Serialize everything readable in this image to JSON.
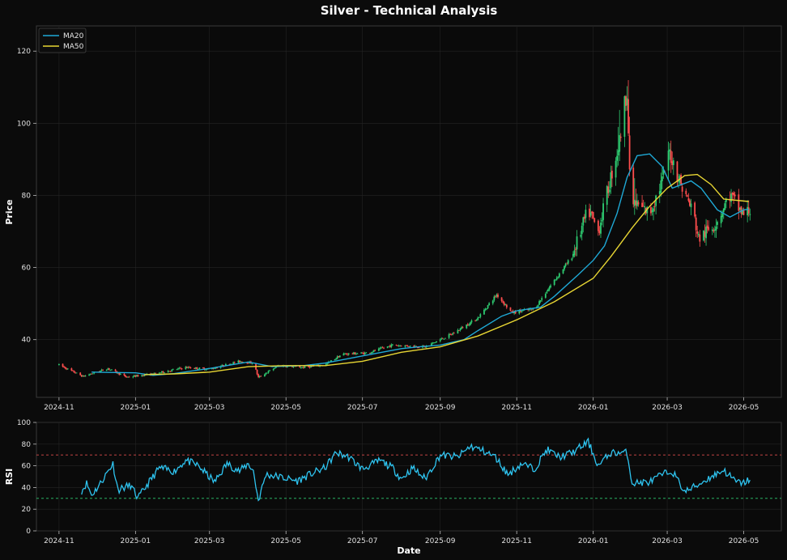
{
  "chart_data": [
    {
      "type": "candlestick",
      "title": "Silver - Technical Analysis",
      "ylabel": "Price",
      "ylim": [
        24,
        127
      ],
      "yticks": [
        40,
        60,
        80,
        100,
        120
      ],
      "xlim": [
        "2024-10-14",
        "2026-05-31"
      ],
      "xticks": [
        "2024-11",
        "2025-01",
        "2025-03",
        "2025-05",
        "2025-07",
        "2025-09",
        "2025-11",
        "2026-01",
        "2026-03",
        "2026-05"
      ],
      "grid": true,
      "legend": "top-left",
      "colors": {
        "up": "#2ecc71",
        "down": "#ff4d4d",
        "ma20": "#1fa9d6",
        "ma50": "#e8d633",
        "grid": "#242424",
        "frame": "#3a3a3a"
      },
      "series": [
        {
          "name": "MA20",
          "color": "#1fa9d6",
          "points": [
            [
              "2024-11-27",
              31.0
            ],
            [
              "2025-01-01",
              30.8
            ],
            [
              "2025-01-15",
              30.1
            ],
            [
              "2025-02-01",
              30.6
            ],
            [
              "2025-03-01",
              32.0
            ],
            [
              "2025-04-01",
              33.8
            ],
            [
              "2025-04-20",
              32.5
            ],
            [
              "2025-05-15",
              32.8
            ],
            [
              "2025-06-01",
              33.5
            ],
            [
              "2025-07-01",
              35.5
            ],
            [
              "2025-08-01",
              37.5
            ],
            [
              "2025-08-15",
              38.0
            ],
            [
              "2025-09-01",
              38.5
            ],
            [
              "2025-09-20",
              40.0
            ],
            [
              "2025-10-01",
              42.5
            ],
            [
              "2025-10-20",
              46.5
            ],
            [
              "2025-11-01",
              48.0
            ],
            [
              "2025-11-20",
              49.0
            ],
            [
              "2025-12-01",
              52.0
            ],
            [
              "2025-12-20",
              58.0
            ],
            [
              "2026-01-01",
              62.0
            ],
            [
              "2026-01-10",
              66.0
            ],
            [
              "2026-01-20",
              75.0
            ],
            [
              "2026-01-28",
              85.0
            ],
            [
              "2026-02-05",
              91.0
            ],
            [
              "2026-02-15",
              91.5
            ],
            [
              "2026-02-25",
              88.0
            ],
            [
              "2026-03-05",
              82.0
            ],
            [
              "2026-03-20",
              84.0
            ],
            [
              "2026-03-28",
              82.0
            ],
            [
              "2026-04-10",
              76.0
            ],
            [
              "2026-04-20",
              74.0
            ],
            [
              "2026-05-01",
              76.0
            ],
            [
              "2026-05-05",
              76.2
            ]
          ]
        },
        {
          "name": "MA50",
          "color": "#e8d633",
          "points": [
            [
              "2025-01-08",
              30.3
            ],
            [
              "2025-02-01",
              30.5
            ],
            [
              "2025-03-01",
              31.0
            ],
            [
              "2025-04-01",
              32.5
            ],
            [
              "2025-05-01",
              32.8
            ],
            [
              "2025-06-01",
              32.8
            ],
            [
              "2025-07-01",
              34.0
            ],
            [
              "2025-08-01",
              36.5
            ],
            [
              "2025-09-01",
              38.0
            ],
            [
              "2025-10-01",
              41.0
            ],
            [
              "2025-11-01",
              45.5
            ],
            [
              "2025-12-01",
              50.5
            ],
            [
              "2026-01-01",
              57.0
            ],
            [
              "2026-01-15",
              63.0
            ],
            [
              "2026-02-01",
              71.0
            ],
            [
              "2026-02-15",
              77.0
            ],
            [
              "2026-03-01",
              82.0
            ],
            [
              "2026-03-15",
              85.5
            ],
            [
              "2026-03-25",
              85.8
            ],
            [
              "2026-04-05",
              83.0
            ],
            [
              "2026-04-15",
              79.0
            ],
            [
              "2026-05-05",
              78.3
            ]
          ]
        }
      ],
      "candle_anchors": [
        [
          "2024-11-01",
          33.0
        ],
        [
          "2024-11-20",
          29.8
        ],
        [
          "2024-12-10",
          32.0
        ],
        [
          "2024-12-25",
          29.6
        ],
        [
          "2025-01-15",
          30.5
        ],
        [
          "2025-02-10",
          32.3
        ],
        [
          "2025-03-01",
          31.8
        ],
        [
          "2025-03-25",
          34.0
        ],
        [
          "2025-04-05",
          33.5
        ],
        [
          "2025-04-09",
          29.5
        ],
        [
          "2025-04-25",
          32.8
        ],
        [
          "2025-05-15",
          32.3
        ],
        [
          "2025-06-01",
          33.0
        ],
        [
          "2025-06-15",
          36.0
        ],
        [
          "2025-07-05",
          36.3
        ],
        [
          "2025-07-25",
          38.5
        ],
        [
          "2025-08-20",
          38.0
        ],
        [
          "2025-09-10",
          41.5
        ],
        [
          "2025-10-01",
          46.0
        ],
        [
          "2025-10-16",
          52.5
        ],
        [
          "2025-10-28",
          47.5
        ],
        [
          "2025-11-15",
          48.5
        ],
        [
          "2025-11-28",
          55.0
        ],
        [
          "2025-12-15",
          63.0
        ],
        [
          "2025-12-28",
          76.0
        ],
        [
          "2026-01-05",
          70.0
        ],
        [
          "2026-01-15",
          85.0
        ],
        [
          "2026-01-22",
          95.0
        ],
        [
          "2026-01-28",
          110.0
        ],
        [
          "2026-01-30",
          85.0
        ],
        [
          "2026-02-02",
          78.0
        ],
        [
          "2026-02-15",
          75.0
        ],
        [
          "2026-02-25",
          84.0
        ],
        [
          "2026-03-03",
          92.0
        ],
        [
          "2026-03-12",
          83.0
        ],
        [
          "2026-03-22",
          75.0
        ],
        [
          "2026-03-26",
          68.0
        ],
        [
          "2026-04-08",
          72.0
        ],
        [
          "2026-04-20",
          80.0
        ],
        [
          "2026-05-01",
          74.5
        ],
        [
          "2026-05-06",
          76.0
        ]
      ]
    },
    {
      "type": "line",
      "ylabel": "RSI",
      "xlabel": "Date",
      "ylim": [
        0,
        100
      ],
      "yticks": [
        0,
        20,
        40,
        60,
        80,
        100
      ],
      "xlim": [
        "2024-10-14",
        "2026-05-31"
      ],
      "xticks": [
        "2024-11",
        "2025-01",
        "2025-03",
        "2025-05",
        "2025-07",
        "2025-09",
        "2025-11",
        "2026-01",
        "2026-03",
        "2026-05"
      ],
      "reference_lines": [
        {
          "value": 70,
          "color": "#d94a4a"
        },
        {
          "value": 30,
          "color": "#2ecc71"
        }
      ],
      "series": [
        {
          "name": "RSI",
          "color": "#2ec4f0",
          "points": [
            [
              "2024-11-19",
              37
            ],
            [
              "2024-11-23",
              44
            ],
            [
              "2024-11-27",
              33
            ],
            [
              "2024-12-03",
              42
            ],
            [
              "2024-12-10",
              55
            ],
            [
              "2024-12-14",
              62
            ],
            [
              "2024-12-18",
              38
            ],
            [
              "2024-12-28",
              42
            ],
            [
              "2025-01-03",
              30
            ],
            [
              "2025-01-10",
              42
            ],
            [
              "2025-01-20",
              58
            ],
            [
              "2025-02-01",
              55
            ],
            [
              "2025-02-10",
              65
            ],
            [
              "2025-02-20",
              60
            ],
            [
              "2025-03-05",
              45
            ],
            [
              "2025-03-15",
              62
            ],
            [
              "2025-03-25",
              55
            ],
            [
              "2025-04-01",
              62
            ],
            [
              "2025-04-05",
              55
            ],
            [
              "2025-04-09",
              28
            ],
            [
              "2025-04-15",
              52
            ],
            [
              "2025-04-25",
              50
            ],
            [
              "2025-05-10",
              46
            ],
            [
              "2025-05-20",
              52
            ],
            [
              "2025-06-01",
              58
            ],
            [
              "2025-06-10",
              72
            ],
            [
              "2025-06-20",
              68
            ],
            [
              "2025-07-01",
              57
            ],
            [
              "2025-07-15",
              65
            ],
            [
              "2025-07-25",
              58
            ],
            [
              "2025-08-01",
              48
            ],
            [
              "2025-08-10",
              58
            ],
            [
              "2025-08-20",
              48
            ],
            [
              "2025-09-01",
              70
            ],
            [
              "2025-09-15",
              68
            ],
            [
              "2025-09-25",
              78
            ],
            [
              "2025-10-05",
              74
            ],
            [
              "2025-10-15",
              68
            ],
            [
              "2025-10-25",
              52
            ],
            [
              "2025-11-05",
              62
            ],
            [
              "2025-11-15",
              57
            ],
            [
              "2025-11-25",
              75
            ],
            [
              "2025-12-05",
              68
            ],
            [
              "2025-12-15",
              72
            ],
            [
              "2025-12-28",
              82
            ],
            [
              "2026-01-05",
              60
            ],
            [
              "2026-01-15",
              72
            ],
            [
              "2026-01-28",
              72
            ],
            [
              "2026-02-01",
              44
            ],
            [
              "2026-02-15",
              45
            ],
            [
              "2026-02-25",
              52
            ],
            [
              "2026-03-05",
              55
            ],
            [
              "2026-03-15",
              36
            ],
            [
              "2026-03-25",
              42
            ],
            [
              "2026-04-05",
              50
            ],
            [
              "2026-04-15",
              56
            ],
            [
              "2026-04-25",
              45
            ],
            [
              "2026-05-01",
              44
            ],
            [
              "2026-05-06",
              48
            ]
          ]
        }
      ]
    }
  ]
}
